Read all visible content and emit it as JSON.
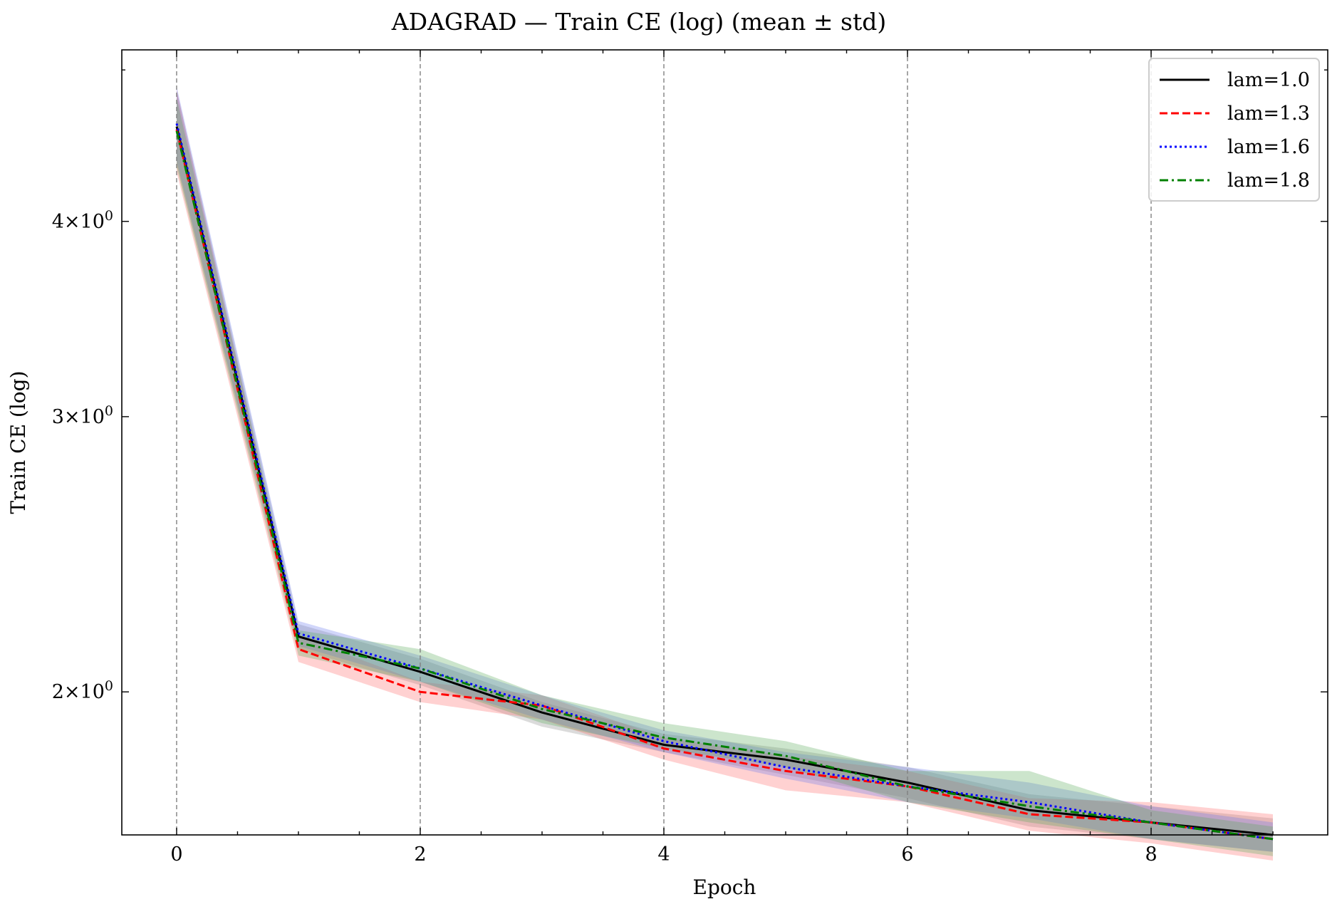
{
  "chart_data": {
    "type": "line",
    "title": "ADAGRAD — Train CE (log) (mean ± std)",
    "xlabel": "Epoch",
    "ylabel": "Train CE (log)",
    "yscale": "log",
    "xlim": [
      -0.45,
      9.45
    ],
    "ylim": [
      1.62,
      5.15
    ],
    "grid": "vertical dashed at major x ticks",
    "legend_position": "top-right",
    "x_ticks": [
      0,
      2,
      4,
      6,
      8
    ],
    "x_tick_labels": [
      "0",
      "2",
      "4",
      "6",
      "8"
    ],
    "y_ticks": [
      2,
      3,
      4
    ],
    "y_tick_labels": [
      {
        "base": "2",
        "exp": "0"
      },
      {
        "base": "3",
        "exp": "0"
      },
      {
        "base": "4",
        "exp": "0"
      }
    ],
    "x": [
      0,
      1,
      2,
      3,
      4,
      5,
      6,
      7,
      8,
      9
    ],
    "series": [
      {
        "name": "lam=1.0",
        "color": "#000000",
        "dash": "solid",
        "band_color": "#888888",
        "values": [
          4.6,
          2.17,
          2.06,
          1.94,
          1.85,
          1.81,
          1.75,
          1.68,
          1.65,
          1.62
        ],
        "lower": [
          4.35,
          2.13,
          2.02,
          1.9,
          1.83,
          1.77,
          1.71,
          1.64,
          1.61,
          1.58
        ],
        "upper": [
          4.85,
          2.21,
          2.1,
          1.97,
          1.88,
          1.84,
          1.79,
          1.72,
          1.69,
          1.66
        ]
      },
      {
        "name": "lam=1.3",
        "color": "#ff0000",
        "dash": "dashed",
        "band_color": "#ff6666",
        "values": [
          4.58,
          2.13,
          2.0,
          1.96,
          1.84,
          1.78,
          1.74,
          1.67,
          1.65,
          1.61
        ],
        "lower": [
          4.3,
          2.09,
          1.97,
          1.92,
          1.81,
          1.73,
          1.7,
          1.63,
          1.6,
          1.56
        ],
        "upper": [
          4.86,
          2.17,
          2.03,
          1.99,
          1.87,
          1.82,
          1.78,
          1.71,
          1.7,
          1.67
        ]
      },
      {
        "name": "lam=1.6",
        "color": "#0000ff",
        "dash": "dotted",
        "band_color": "#6677ee",
        "values": [
          4.62,
          2.18,
          2.07,
          1.96,
          1.86,
          1.79,
          1.74,
          1.7,
          1.65,
          1.61
        ],
        "lower": [
          4.37,
          2.14,
          2.03,
          1.92,
          1.83,
          1.76,
          1.7,
          1.66,
          1.61,
          1.58
        ],
        "upper": [
          4.88,
          2.22,
          2.11,
          1.99,
          1.89,
          1.83,
          1.79,
          1.75,
          1.69,
          1.65
        ]
      },
      {
        "name": "lam=1.8",
        "color": "#008000",
        "dash": "dashdot",
        "band_color": "#55aa55",
        "values": [
          4.57,
          2.15,
          2.07,
          1.95,
          1.87,
          1.82,
          1.74,
          1.69,
          1.65,
          1.61
        ],
        "lower": [
          4.33,
          2.11,
          2.03,
          1.91,
          1.84,
          1.79,
          1.7,
          1.65,
          1.61,
          1.57
        ],
        "upper": [
          4.8,
          2.19,
          2.13,
          1.99,
          1.91,
          1.86,
          1.78,
          1.78,
          1.68,
          1.64
        ]
      }
    ]
  }
}
